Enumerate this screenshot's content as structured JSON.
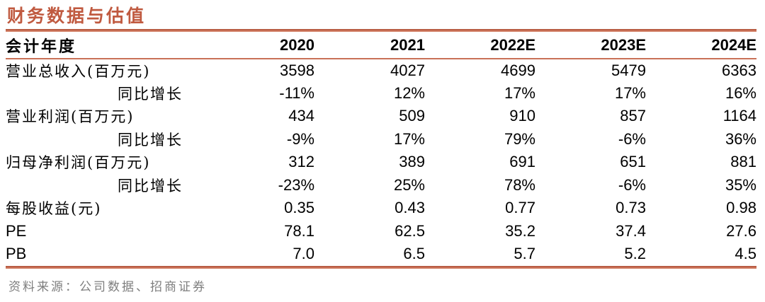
{
  "title": "财务数据与估值",
  "colors": {
    "accent": "#c05a40",
    "rule": "#c4664c",
    "header_text": "#000000",
    "body_text": "#000000",
    "source_text": "#7e7e7e",
    "background": "#ffffff"
  },
  "table": {
    "header": {
      "label": "会计年度",
      "years": [
        "2020",
        "2021",
        "2022E",
        "2023E",
        "2024E"
      ]
    },
    "rows": [
      {
        "label": "营业总收入(百万元)",
        "sub": false,
        "values": [
          "3598",
          "4027",
          "4699",
          "5479",
          "6363"
        ]
      },
      {
        "label": "同比增长",
        "sub": true,
        "values": [
          "-11%",
          "12%",
          "17%",
          "17%",
          "16%"
        ]
      },
      {
        "label": "营业利润(百万元)",
        "sub": false,
        "values": [
          "434",
          "509",
          "910",
          "857",
          "1164"
        ]
      },
      {
        "label": "同比增长",
        "sub": true,
        "values": [
          "-9%",
          "17%",
          "79%",
          "-6%",
          "36%"
        ]
      },
      {
        "label": "归母净利润(百万元)",
        "sub": false,
        "values": [
          "312",
          "389",
          "691",
          "651",
          "881"
        ]
      },
      {
        "label": "同比增长",
        "sub": true,
        "values": [
          "-23%",
          "25%",
          "78%",
          "-6%",
          "35%"
        ]
      },
      {
        "label": "每股收益(元)",
        "sub": false,
        "values": [
          "0.35",
          "0.43",
          "0.77",
          "0.73",
          "0.98"
        ]
      },
      {
        "label": "PE",
        "sub": false,
        "values": [
          "78.1",
          "62.5",
          "35.2",
          "37.4",
          "27.6"
        ]
      },
      {
        "label": "PB",
        "sub": false,
        "values": [
          "7.0",
          "6.5",
          "5.7",
          "5.2",
          "4.5"
        ]
      }
    ]
  },
  "footer": {
    "source": "资料来源：公司数据、招商证券"
  }
}
